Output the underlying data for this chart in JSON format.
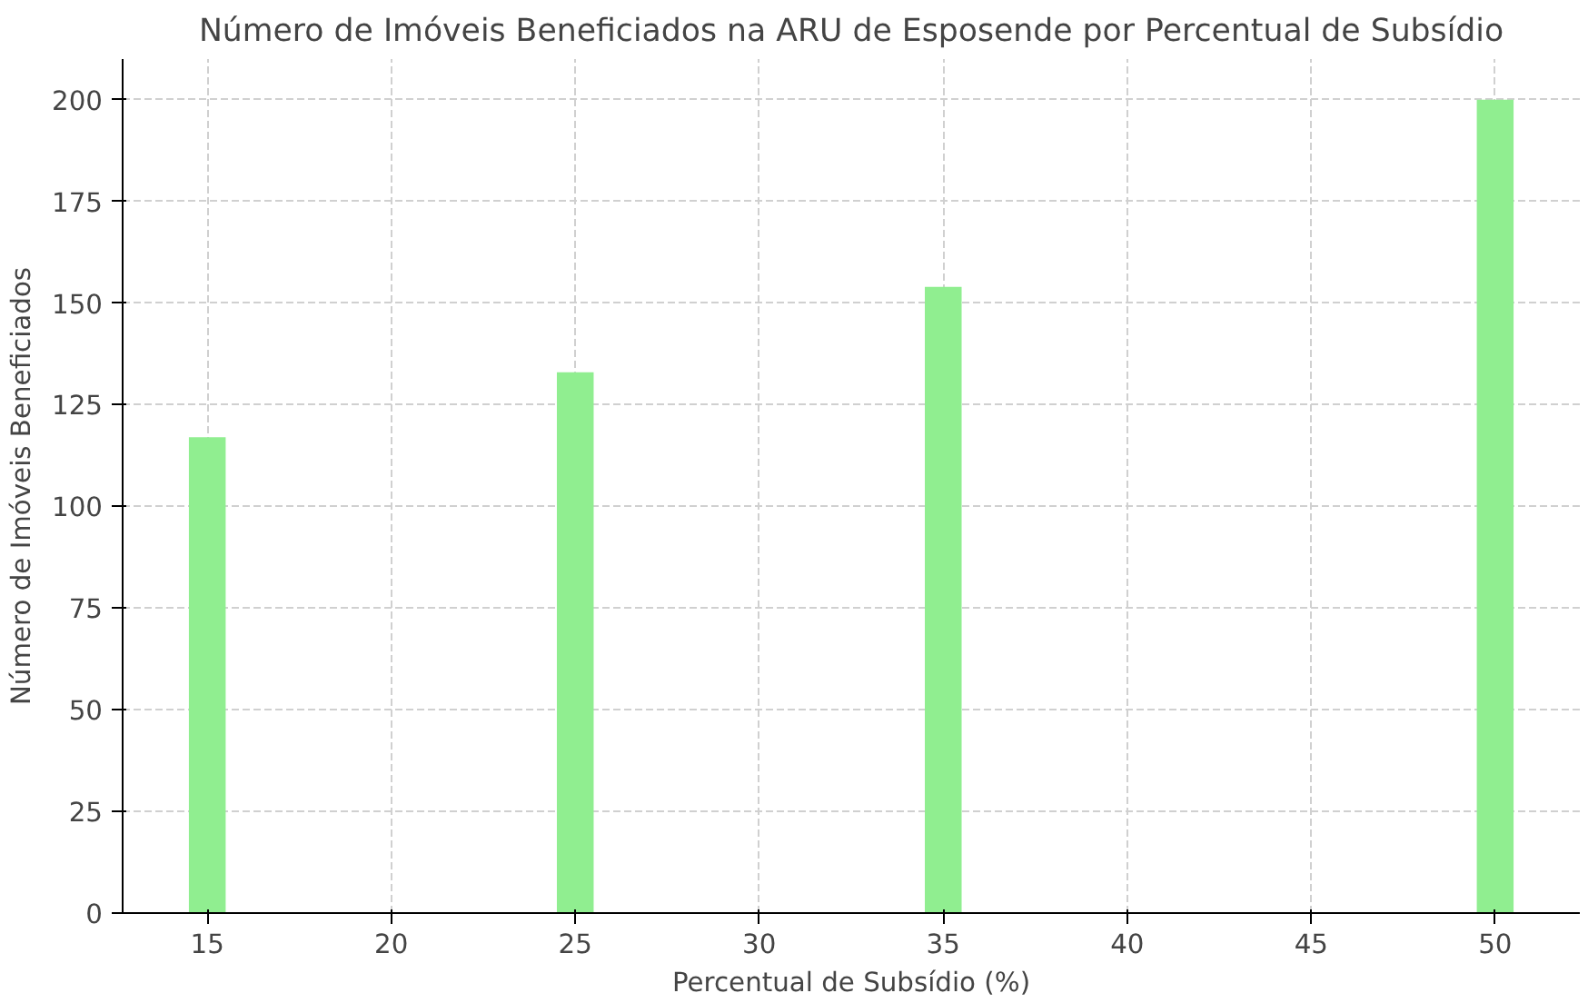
{
  "chart_data": {
    "type": "bar",
    "title": "Número de Imóveis Beneficiados na ARU de Esposende por Percentual de Subsídio",
    "xlabel": "Percentual de Subsídio (%)",
    "ylabel": "Número de Imóveis Beneficiados",
    "x": [
      15,
      25,
      35,
      50
    ],
    "series": [
      {
        "color": "#90ee90",
        "values": [
          117,
          133,
          154,
          200
        ]
      }
    ],
    "xlim": [
      12.7,
      52.3
    ],
    "xticks": [
      15,
      20,
      25,
      30,
      35,
      40,
      45,
      50
    ],
    "ylim": [
      0,
      210
    ],
    "yticks": [
      0,
      25,
      50,
      75,
      100,
      125,
      150,
      175,
      200
    ],
    "grid": true,
    "line_style": "dashed"
  }
}
